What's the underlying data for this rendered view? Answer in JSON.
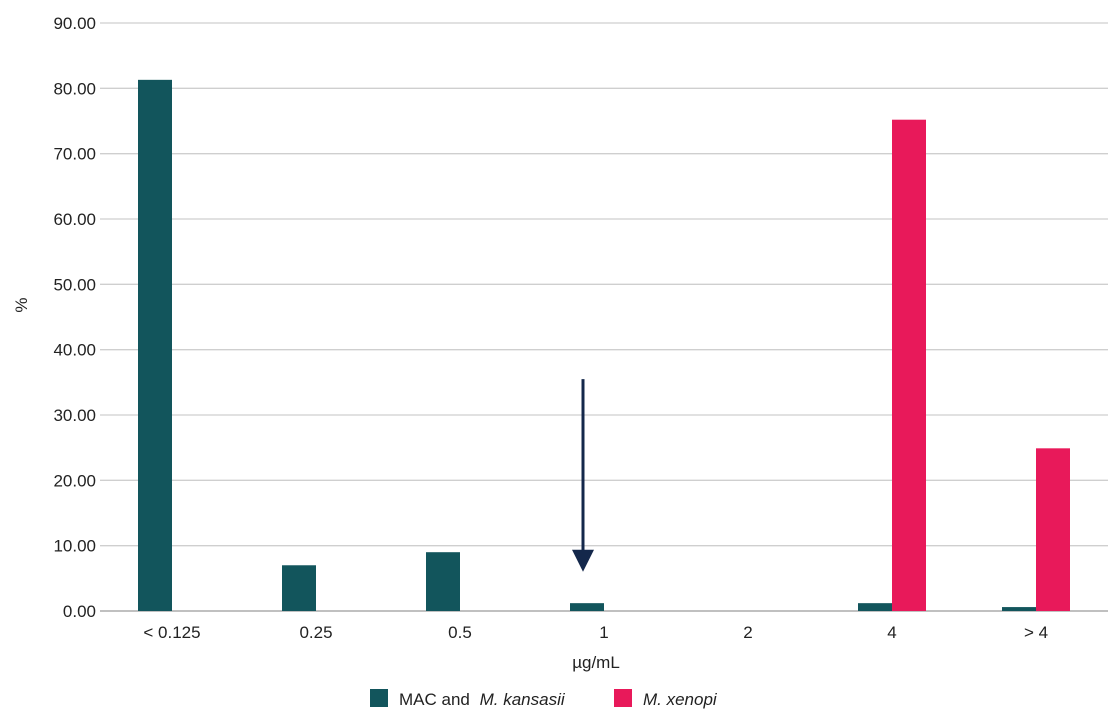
{
  "chart_data": {
    "type": "bar",
    "title": "",
    "xlabel": "µg/mL",
    "ylabel": "%",
    "ylim": [
      0,
      90
    ],
    "yticks": [
      "0.00",
      "10.00",
      "20.00",
      "30.00",
      "40.00",
      "50.00",
      "60.00",
      "70.00",
      "80.00",
      "90.00"
    ],
    "categories": [
      "< 0.125",
      "0.25",
      "0.5",
      "1",
      "2",
      "4",
      "> 4"
    ],
    "grid": true,
    "legend_position": "bottom-center",
    "series": [
      {
        "name": "MAC and M. kansasii",
        "name_plain": "MAC and ",
        "name_italic": "M. kansasii",
        "color": "#12555c",
        "values": [
          81.3,
          7.0,
          9.0,
          1.2,
          0.0,
          1.2,
          0.6
        ]
      },
      {
        "name": "M. xenopi",
        "name_plain": "",
        "name_italic": "M. xenopi",
        "color": "#e8195a",
        "values": [
          0.0,
          0.0,
          0.0,
          0.0,
          0.0,
          75.2,
          24.9
        ]
      }
    ],
    "annotations": [
      {
        "type": "arrow-down",
        "category": "1",
        "from_value": 35.5,
        "to_value": 6.0,
        "color": "#14284b"
      }
    ]
  }
}
